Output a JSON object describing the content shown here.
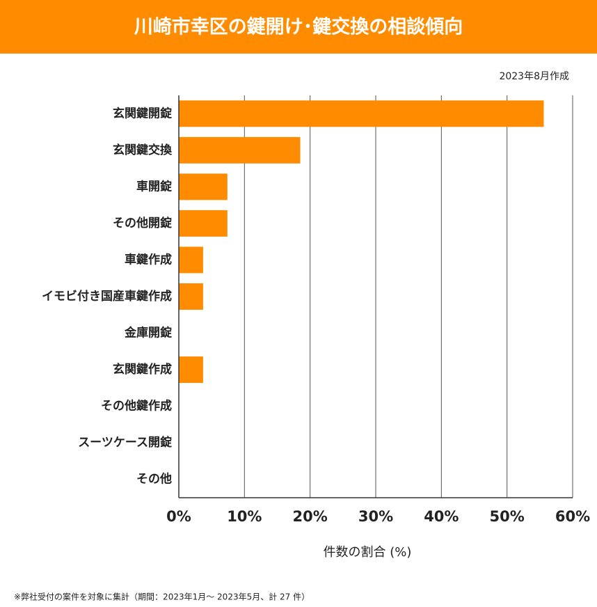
{
  "chart_data": {
    "type": "bar",
    "orientation": "horizontal",
    "title": "川崎市幸区の鍵開け･鍵交換の相談傾向",
    "subtitle": "2023年8月作成",
    "x_label": "件数の割合 (%)",
    "footnote": "※弊社受付の案件を対象に集計（期間：2023年1月～ 2023年5月、計 27 件）",
    "categories": [
      "玄関鍵開錠",
      "玄関鍵交換",
      "車開錠",
      "その他開錠",
      "車鍵作成",
      "イモビ付き国産車鍵作成",
      "金庫開錠",
      "玄関鍵作成",
      "その他鍵作成",
      "スーツケース開錠",
      "その他"
    ],
    "values": [
      55.6,
      18.5,
      7.4,
      7.4,
      3.7,
      3.7,
      0,
      3.7,
      0,
      0,
      0
    ],
    "color": "#ff8c00",
    "xlim": [
      0,
      60
    ],
    "xticks": [
      {
        "value": 0,
        "label": "0%"
      },
      {
        "value": 10,
        "label": "10%"
      },
      {
        "value": 20,
        "label": "20%"
      },
      {
        "value": 30,
        "label": "30%"
      },
      {
        "value": 40,
        "label": "40%"
      },
      {
        "value": 50,
        "label": "50%"
      },
      {
        "value": 60,
        "label": "60%"
      }
    ],
    "grid": true
  }
}
